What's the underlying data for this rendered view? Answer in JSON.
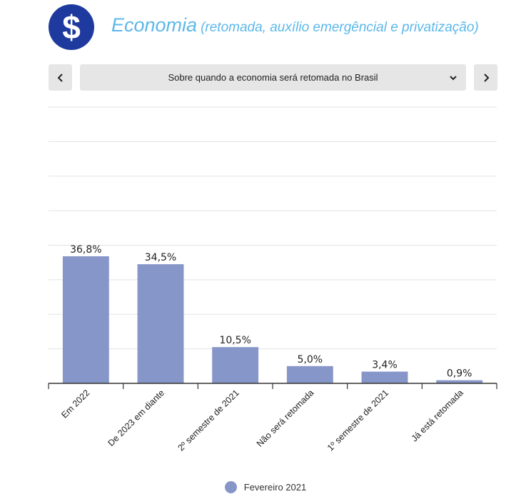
{
  "header": {
    "logo_symbol": "$",
    "title": "Economia",
    "subtitle": "(retomada, auxílio emergêncial e privatização)"
  },
  "selector": {
    "selected": "Sobre quando a economia será retomada no Brasil",
    "prev_icon": "chevron-left-icon",
    "next_icon": "chevron-right-icon",
    "caret_icon": "chevron-down-icon"
  },
  "colors": {
    "logo": "#1e3a9e",
    "title": "#5cb8ea",
    "bar": "#8796c8",
    "grid": "#e3e3e3",
    "axis": "#333333"
  },
  "chart_data": {
    "type": "bar",
    "categories": [
      "Em 2022",
      "De 2023 em diante",
      "2º semestre de 2021",
      "Não será retomada",
      "1º semestre de 2021",
      "Já está retomada"
    ],
    "series": [
      {
        "name": "Fevereiro 2021",
        "values": [
          36.8,
          34.5,
          10.5,
          5.0,
          3.4,
          0.9
        ],
        "labels": [
          "36,8%",
          "34,5%",
          "10,5%",
          "5,0%",
          "3,4%",
          "0,9%"
        ]
      }
    ],
    "ylim": [
      0,
      80
    ],
    "grid": true,
    "legend": "bottom-center",
    "xlabel": "",
    "ylabel": ""
  }
}
